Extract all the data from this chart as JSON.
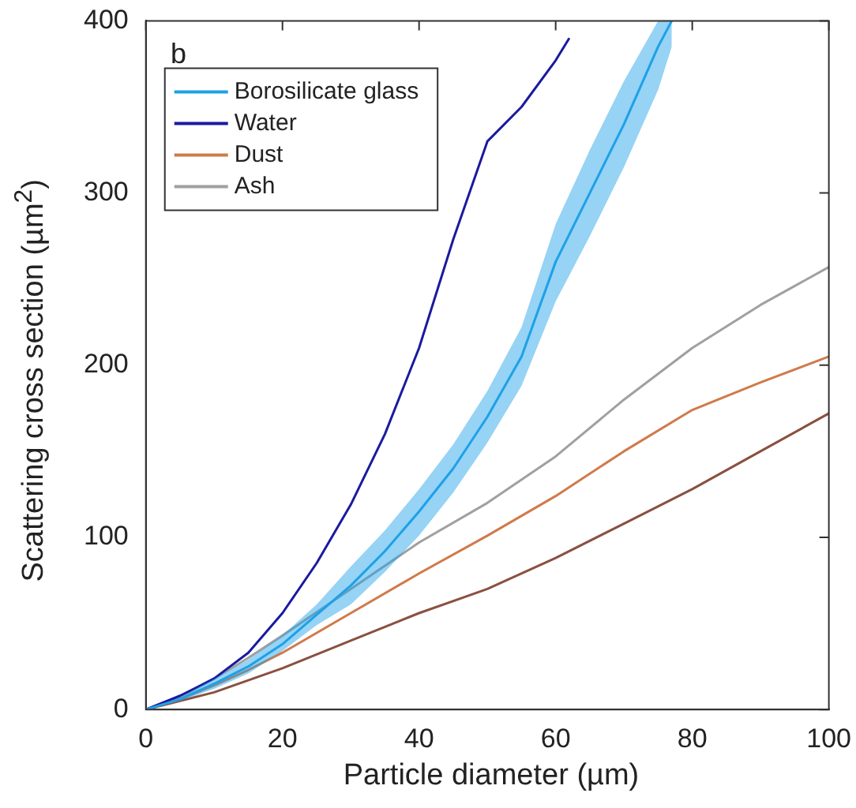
{
  "chart_data": {
    "type": "line",
    "xlabel": "Particle diameter (µm)",
    "ylabel": "Scattering cross section (µm$^{2}$)",
    "annotations": [
      "b"
    ],
    "xlim": [
      0,
      100
    ],
    "ylim": [
      0,
      400
    ],
    "xticks": [
      0,
      20,
      40,
      60,
      80,
      100
    ],
    "yticks": [
      0,
      100,
      200,
      300,
      400
    ],
    "grid": false,
    "legend": "top left",
    "marker": "none",
    "line_style": "solid",
    "series": [
      {
        "name": "Borosilicate glass",
        "color": "#1ea0e8",
        "x": [
          0,
          5,
          10,
          15,
          20,
          25,
          30,
          35,
          40,
          45,
          50,
          55,
          60,
          65,
          70,
          75,
          77
        ],
        "values": [
          0,
          6,
          15,
          25,
          38,
          55,
          72,
          92,
          115,
          140,
          170,
          205,
          260,
          300,
          340,
          385,
          400
        ],
        "lower": [
          0,
          5,
          12,
          21,
          34,
          49,
          61,
          80,
          101,
          126,
          155,
          188,
          237,
          275,
          315,
          360,
          385
        ],
        "upper": [
          0,
          7,
          18,
          29,
          43,
          61,
          83,
          104,
          128,
          154,
          185,
          222,
          282,
          325,
          365,
          400,
          400
        ]
      },
      {
        "name": "Water",
        "color": "#1a1aa0",
        "x": [
          0,
          5,
          10,
          15,
          20,
          25,
          30,
          35,
          40,
          45,
          50,
          55,
          60,
          62
        ],
        "values": [
          0,
          8,
          18,
          33,
          56,
          85,
          119,
          160,
          210,
          273,
          330,
          350,
          377,
          390
        ]
      },
      {
        "name": "Dust",
        "color": "#d07a4a",
        "x": [
          0,
          5,
          10,
          15,
          20,
          30,
          40,
          50,
          60,
          70,
          80,
          90,
          100
        ],
        "values": [
          0,
          6,
          14,
          23,
          33,
          56,
          79,
          101,
          124,
          150,
          174,
          190,
          205
        ]
      },
      {
        "name": "Ash",
        "color": "#a0a0a0",
        "x": [
          0,
          5,
          10,
          15,
          20,
          30,
          40,
          50,
          60,
          70,
          80,
          90,
          100
        ],
        "values": [
          0,
          7,
          18,
          30,
          43,
          70,
          97,
          120,
          147,
          180,
          210,
          235,
          257
        ]
      },
      {
        "color": "#8a5040",
        "x": [
          0,
          5,
          10,
          15,
          20,
          30,
          40,
          50,
          60,
          70,
          80,
          90,
          100
        ],
        "values": [
          0,
          5,
          10,
          17,
          24,
          40,
          56,
          70,
          88,
          108,
          128,
          150,
          172
        ]
      }
    ]
  }
}
